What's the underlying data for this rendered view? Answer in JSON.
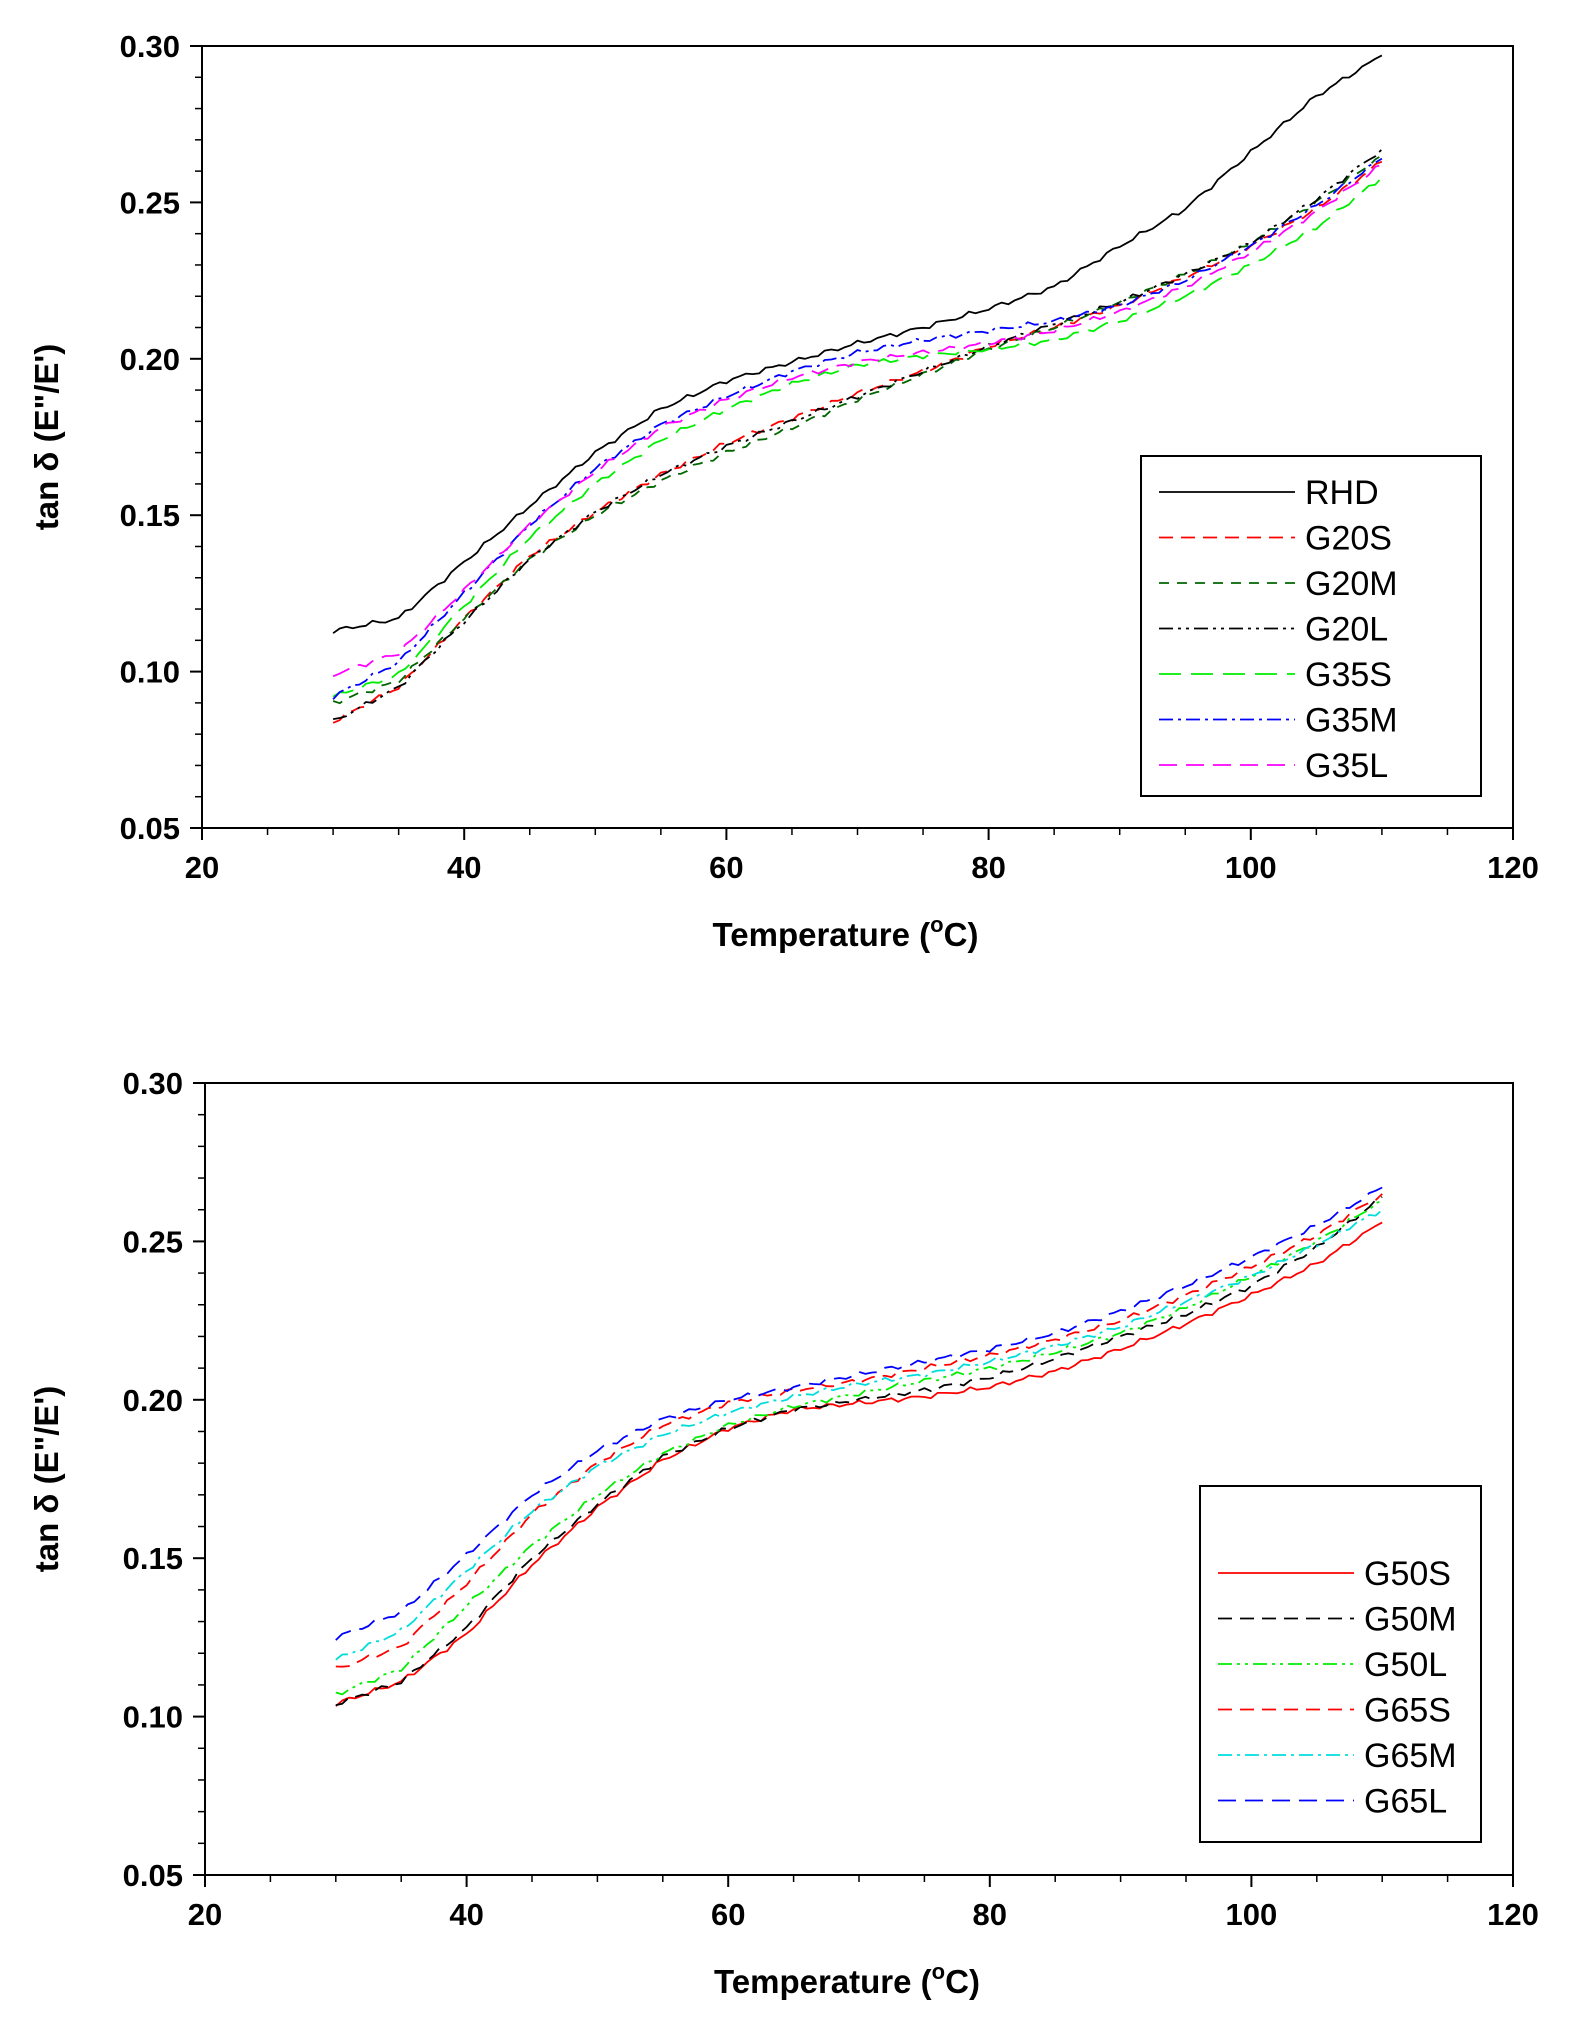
{
  "chart_data": [
    {
      "type": "line",
      "xlabel": "Temperature (°C)",
      "xlabel_parts": [
        "Temperature (",
        "o",
        "C)"
      ],
      "ylabel": "tan δ (E\"/E')",
      "xlim": [
        20,
        120
      ],
      "ylim": [
        0.05,
        0.3
      ],
      "x_ticks": [
        20,
        40,
        60,
        80,
        100,
        120
      ],
      "x_tick_labels": [
        "20",
        "40",
        "60",
        "80",
        "100",
        "120"
      ],
      "y_ticks": [
        0.05,
        0.1,
        0.15,
        0.2,
        0.25,
        0.3
      ],
      "y_tick_labels": [
        "0.05",
        "0.10",
        "0.15",
        "0.20",
        "0.25",
        "0.30"
      ],
      "grid": false,
      "legend_position": "bottom-right",
      "x": [
        30,
        35,
        40,
        45,
        50,
        55,
        60,
        65,
        70,
        75,
        80,
        85,
        90,
        95,
        100,
        105,
        110
      ],
      "series": [
        {
          "name": "RHD",
          "color": "#000000",
          "dash": "none",
          "values": [
            0.113,
            0.117,
            0.135,
            0.153,
            0.17,
            0.184,
            0.193,
            0.199,
            0.205,
            0.21,
            0.216,
            0.223,
            0.236,
            0.248,
            0.266,
            0.284,
            0.297
          ]
        },
        {
          "name": "G20S",
          "color": "#ff0000",
          "dash": "14,8",
          "values": [
            0.084,
            0.095,
            0.117,
            0.137,
            0.151,
            0.163,
            0.173,
            0.181,
            0.189,
            0.196,
            0.204,
            0.21,
            0.217,
            0.226,
            0.236,
            0.248,
            0.263
          ]
        },
        {
          "name": "G20M",
          "color": "#006600",
          "dash": "10,8",
          "values": [
            0.09,
            0.097,
            0.117,
            0.136,
            0.15,
            0.161,
            0.17,
            0.178,
            0.187,
            0.195,
            0.203,
            0.21,
            0.218,
            0.227,
            0.237,
            0.25,
            0.265
          ]
        },
        {
          "name": "G20L",
          "color": "#000000",
          "dash": "14,5,3,5,3,5",
          "values": [
            0.084,
            0.095,
            0.116,
            0.136,
            0.151,
            0.163,
            0.172,
            0.18,
            0.188,
            0.196,
            0.204,
            0.211,
            0.218,
            0.227,
            0.237,
            0.251,
            0.267
          ]
        },
        {
          "name": "G35S",
          "color": "#00ee00",
          "dash": "22,10",
          "values": [
            0.092,
            0.099,
            0.121,
            0.143,
            0.16,
            0.174,
            0.184,
            0.192,
            0.198,
            0.201,
            0.203,
            0.206,
            0.212,
            0.22,
            0.23,
            0.242,
            0.258
          ]
        },
        {
          "name": "G35M",
          "color": "#0000ff",
          "dash": "14,5,3,5",
          "values": [
            0.092,
            0.103,
            0.125,
            0.147,
            0.165,
            0.179,
            0.188,
            0.196,
            0.202,
            0.206,
            0.209,
            0.212,
            0.217,
            0.225,
            0.236,
            0.249,
            0.264
          ]
        },
        {
          "name": "G35L",
          "color": "#ff00ff",
          "dash": "18,9",
          "values": [
            0.099,
            0.106,
            0.126,
            0.147,
            0.164,
            0.178,
            0.187,
            0.194,
            0.199,
            0.202,
            0.205,
            0.209,
            0.215,
            0.223,
            0.234,
            0.247,
            0.262
          ]
        }
      ]
    },
    {
      "type": "line",
      "xlabel": "Temperature (°C)",
      "xlabel_parts": [
        "Temperature (",
        "o",
        "C)"
      ],
      "ylabel": "tan δ (E\"/E')",
      "xlim": [
        20,
        120
      ],
      "ylim": [
        0.05,
        0.3
      ],
      "x_ticks": [
        20,
        40,
        60,
        80,
        100,
        120
      ],
      "x_tick_labels": [
        "20",
        "40",
        "60",
        "80",
        "100",
        "120"
      ],
      "y_ticks": [
        0.05,
        0.1,
        0.15,
        0.2,
        0.25,
        0.3
      ],
      "y_tick_labels": [
        "0.05",
        "0.10",
        "0.15",
        "0.20",
        "0.25",
        "0.30"
      ],
      "grid": false,
      "legend_position": "bottom-right",
      "x": [
        30,
        35,
        40,
        45,
        50,
        55,
        60,
        65,
        70,
        75,
        80,
        85,
        90,
        95,
        100,
        105,
        110
      ],
      "series": [
        {
          "name": "G50S",
          "color": "#ff0000",
          "dash": "none",
          "values": [
            0.104,
            0.111,
            0.126,
            0.148,
            0.166,
            0.181,
            0.191,
            0.197,
            0.199,
            0.201,
            0.204,
            0.209,
            0.216,
            0.224,
            0.233,
            0.243,
            0.256
          ]
        },
        {
          "name": "G50M",
          "color": "#000000",
          "dash": "14,8",
          "values": [
            0.104,
            0.111,
            0.128,
            0.15,
            0.167,
            0.182,
            0.191,
            0.197,
            0.2,
            0.203,
            0.207,
            0.213,
            0.22,
            0.227,
            0.236,
            0.248,
            0.264
          ]
        },
        {
          "name": "G50L",
          "color": "#00ee00",
          "dash": "14,5,3,5,3,5",
          "values": [
            0.107,
            0.115,
            0.135,
            0.154,
            0.17,
            0.183,
            0.192,
            0.198,
            0.202,
            0.206,
            0.21,
            0.215,
            0.221,
            0.229,
            0.239,
            0.25,
            0.263
          ]
        },
        {
          "name": "G65S",
          "color": "#ff0000",
          "dash": "14,8",
          "values": [
            0.115,
            0.122,
            0.142,
            0.164,
            0.18,
            0.192,
            0.199,
            0.203,
            0.206,
            0.21,
            0.214,
            0.219,
            0.225,
            0.233,
            0.242,
            0.252,
            0.265
          ]
        },
        {
          "name": "G65M",
          "color": "#00dddd",
          "dash": "14,5,3,5",
          "values": [
            0.118,
            0.127,
            0.146,
            0.165,
            0.179,
            0.189,
            0.196,
            0.201,
            0.205,
            0.208,
            0.212,
            0.217,
            0.223,
            0.231,
            0.239,
            0.249,
            0.26
          ]
        },
        {
          "name": "G65L",
          "color": "#0000ff",
          "dash": "18,9",
          "values": [
            0.125,
            0.133,
            0.151,
            0.17,
            0.184,
            0.194,
            0.2,
            0.204,
            0.208,
            0.212,
            0.216,
            0.221,
            0.228,
            0.236,
            0.245,
            0.255,
            0.267
          ]
        }
      ]
    }
  ]
}
